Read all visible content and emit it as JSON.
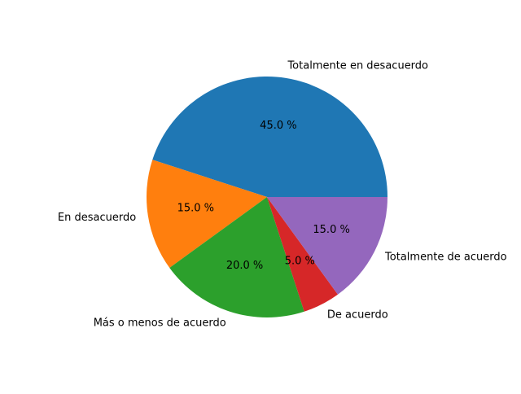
{
  "chart_data": {
    "type": "pie",
    "labels": [
      "Totalmente en desacuerdo",
      "En desacuerdo",
      "Más o menos de acuerdo",
      "De acuerdo",
      "Totalmente de acuerdo"
    ],
    "values": [
      45.0,
      15.0,
      20.0,
      5.0,
      15.0
    ],
    "value_labels": [
      "45.0 %",
      "15.0 %",
      "20.0 %",
      "5.0 %",
      "15.0 %"
    ],
    "colors": [
      "#1f77b4",
      "#ff7f0e",
      "#2ca02c",
      "#d62728",
      "#9467bd"
    ],
    "start_angle_deg": 0,
    "direction": "counterclockwise",
    "legend": "none"
  }
}
